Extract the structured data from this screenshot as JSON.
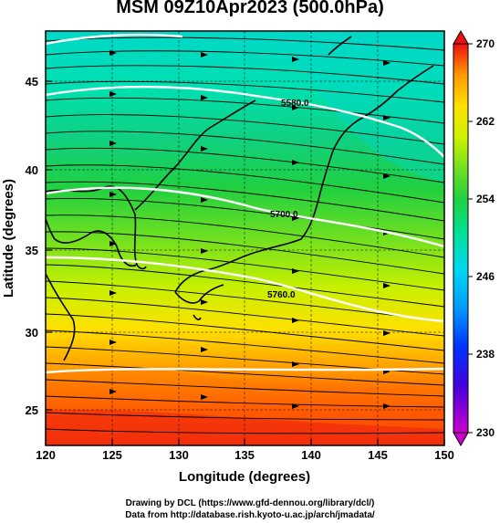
{
  "title": "MSM 09Z10Apr2023 (500.0hPa)",
  "xaxis": {
    "label": "Longitude (degrees)",
    "range": [
      120,
      150
    ],
    "ticks": [
      "120",
      "125",
      "130",
      "135",
      "140",
      "145",
      "150"
    ]
  },
  "yaxis": {
    "label": "Latitude  (degrees)",
    "range": [
      22.4,
      47.6
    ],
    "ticks": [
      "25",
      "30",
      "35",
      "40",
      "45"
    ]
  },
  "colorbar": {
    "range": [
      230,
      270
    ],
    "labels": [
      "270",
      "262",
      "254",
      "246",
      "238",
      "230"
    ],
    "colors": [
      "#cc00cc",
      "#4400dd",
      "#0066ff",
      "#00c8ff",
      "#00e0a0",
      "#20d040",
      "#70e020",
      "#d0f000",
      "#ffe000",
      "#ff9900",
      "#ff4000",
      "#ee1010"
    ]
  },
  "contours": [
    {
      "value_label": "5580.0"
    },
    {
      "value_label": "5700.0"
    },
    {
      "value_label": "5760.0"
    }
  ],
  "credits": {
    "line1": "Drawing by DCL (https://www.gfd-dennou.org/library/dcl/)",
    "line2": "Data from http://database.rish.kyoto-u.ac.jp/arch/jmadata/"
  }
}
